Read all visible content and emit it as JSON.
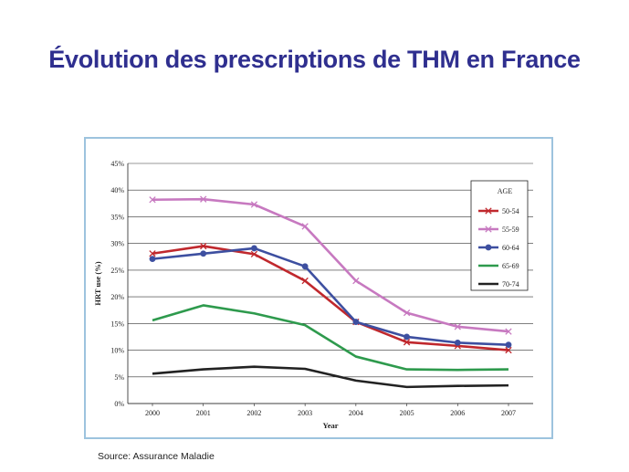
{
  "slide": {
    "title": "Évolution des prescriptions de THM en France",
    "source": "Source: Assurance Maladie"
  },
  "chart_data": {
    "type": "line",
    "title": "",
    "xlabel": "Year",
    "ylabel": "HRT use (%)",
    "x": [
      "2000",
      "2001",
      "2002",
      "2003",
      "2004",
      "2005",
      "2006",
      "2007"
    ],
    "ylim": [
      0,
      45
    ],
    "yticks": [
      "0%",
      "5%",
      "10%",
      "15%",
      "20%",
      "25%",
      "30%",
      "35%",
      "40%",
      "45%"
    ],
    "grid": "horizontal",
    "legend": {
      "title": "AGE",
      "position": "right"
    },
    "series": [
      {
        "name": "50-54",
        "color": "#c0282d",
        "marker": "x",
        "values": [
          28.1,
          29.5,
          28.0,
          23.0,
          15.3,
          11.5,
          10.8,
          10.0
        ]
      },
      {
        "name": "55-59",
        "color": "#c779c0",
        "marker": "x",
        "values": [
          38.2,
          38.3,
          37.3,
          33.2,
          23.0,
          17.0,
          14.4,
          13.5
        ]
      },
      {
        "name": "60-64",
        "color": "#3d4fa0",
        "marker": "circle",
        "values": [
          27.1,
          28.1,
          29.1,
          25.7,
          15.3,
          12.5,
          11.4,
          11.0
        ]
      },
      {
        "name": "65-69",
        "color": "#2e9a4d",
        "marker": "none",
        "values": [
          15.6,
          18.4,
          16.9,
          14.7,
          8.8,
          6.4,
          6.3,
          6.4
        ]
      },
      {
        "name": "70-74",
        "color": "#222222",
        "marker": "none",
        "values": [
          5.6,
          6.4,
          6.9,
          6.5,
          4.3,
          3.1,
          3.3,
          3.4
        ]
      }
    ]
  }
}
